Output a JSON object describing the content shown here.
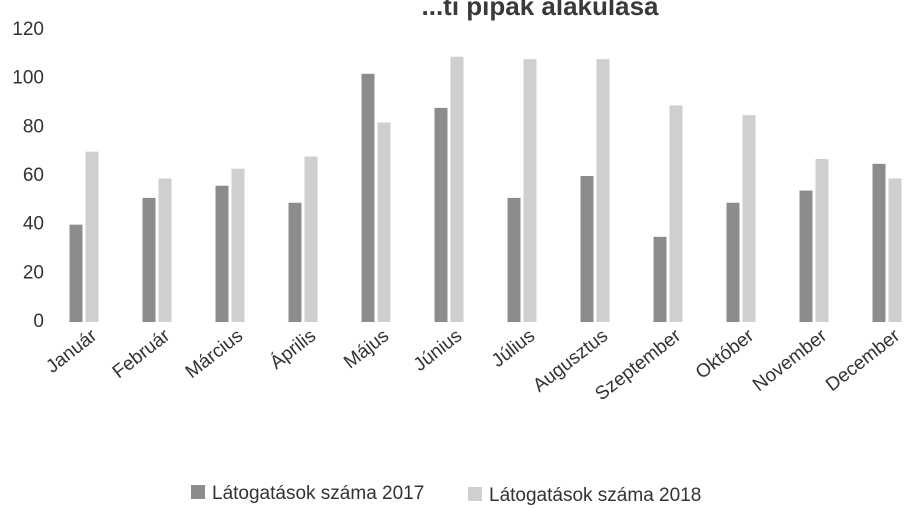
{
  "chart_data": {
    "type": "bar",
    "title": "...ti pipak alakulása",
    "xlabel": "",
    "ylabel": "",
    "ylim": [
      0,
      120
    ],
    "yticks": [
      0,
      20,
      40,
      60,
      80,
      100,
      120
    ],
    "grid": false,
    "legend_position": "bottom",
    "categories": [
      "Január",
      "Február",
      "Március",
      "Április",
      "Május",
      "Június",
      "Július",
      "Augusztus",
      "Szeptember",
      "Október",
      "November",
      "December"
    ],
    "series": [
      {
        "name": "Látogatások száma 2017",
        "color": "#8c8c8c",
        "values": [
          40,
          51,
          56,
          49,
          102,
          88,
          51,
          60,
          35,
          49,
          54,
          65
        ]
      },
      {
        "name": "Látogatások száma 2018",
        "color": "#cfcfcf",
        "values": [
          70,
          59,
          63,
          68,
          82,
          109,
          108,
          108,
          89,
          85,
          67,
          59
        ]
      }
    ]
  }
}
